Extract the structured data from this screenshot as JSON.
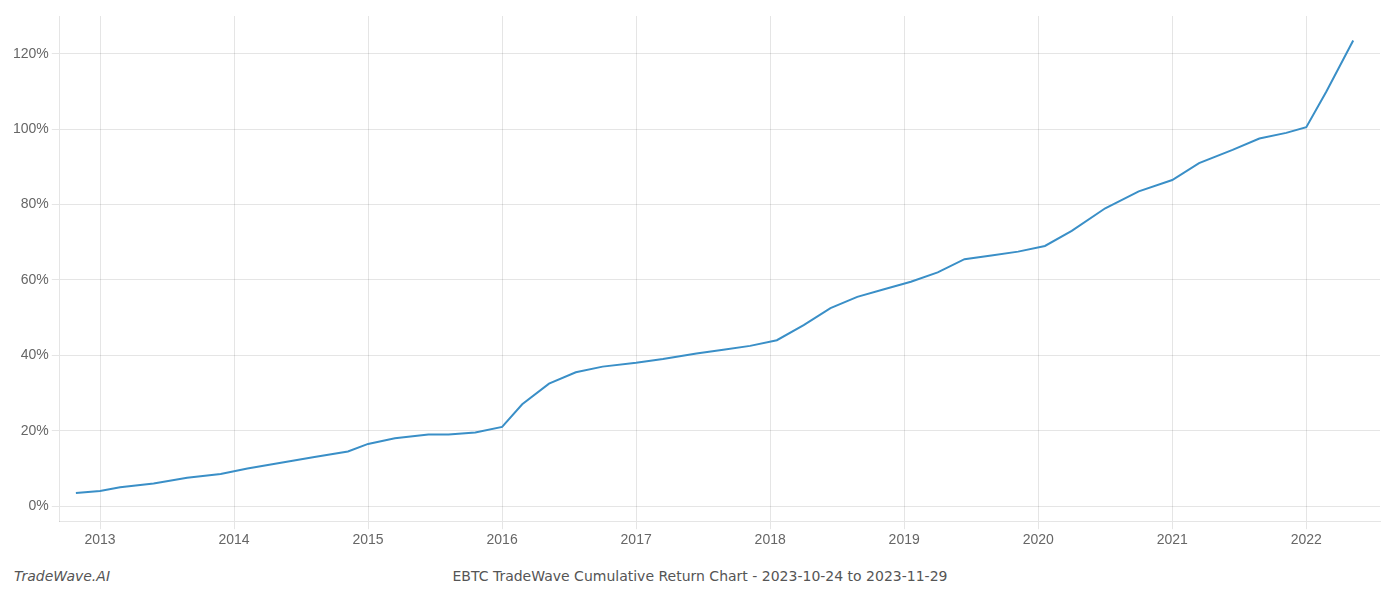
{
  "chart_data": {
    "type": "line",
    "title": "EBTC TradeWave Cumulative Return Chart - 2023-10-24 to 2023-11-29",
    "annotations": [
      "TradeWave.AI"
    ],
    "x": [
      2012.82,
      2013.0,
      2013.15,
      2013.4,
      2013.65,
      2013.9,
      2014.1,
      2014.35,
      2014.6,
      2014.85,
      2015.0,
      2015.2,
      2015.45,
      2015.6,
      2015.8,
      2016.0,
      2016.15,
      2016.35,
      2016.55,
      2016.75,
      2017.0,
      2017.2,
      2017.45,
      2017.65,
      2017.85,
      2018.05,
      2018.25,
      2018.45,
      2018.65,
      2018.85,
      2019.05,
      2019.25,
      2019.45,
      2019.65,
      2019.85,
      2020.05,
      2020.25,
      2020.5,
      2020.75,
      2021.0,
      2021.2,
      2021.45,
      2021.65,
      2021.85,
      2022.0,
      2022.15,
      2022.35
    ],
    "values": [
      3.5,
      4.0,
      5.0,
      6.0,
      7.5,
      8.5,
      10.0,
      11.5,
      13.0,
      14.5,
      16.5,
      18.0,
      19.0,
      19.0,
      19.5,
      21.0,
      27.0,
      32.5,
      35.5,
      37.0,
      38.0,
      39.0,
      40.5,
      41.5,
      42.5,
      44.0,
      48.0,
      52.5,
      55.5,
      57.5,
      59.5,
      62.0,
      65.5,
      66.5,
      67.5,
      69.0,
      73.0,
      79.0,
      83.5,
      86.5,
      91.0,
      94.5,
      97.5,
      99.0,
      100.5,
      110.0,
      123.5
    ],
    "color": "#3a8fc7",
    "xlim": [
      2012.7,
      2022.55
    ],
    "xticks": [
      2013,
      2014,
      2015,
      2016,
      2017,
      2018,
      2019,
      2020,
      2021,
      2022
    ],
    "ylim": [
      -4,
      130
    ],
    "yticks": [
      {
        "value": 0,
        "label": "0%"
      },
      {
        "value": 20,
        "label": "20%"
      },
      {
        "value": 40,
        "label": "40%"
      },
      {
        "value": 60,
        "label": "60%"
      },
      {
        "value": 80,
        "label": "80%"
      },
      {
        "value": 100,
        "label": "100%"
      },
      {
        "value": 120,
        "label": "120%"
      }
    ],
    "grid": true
  }
}
